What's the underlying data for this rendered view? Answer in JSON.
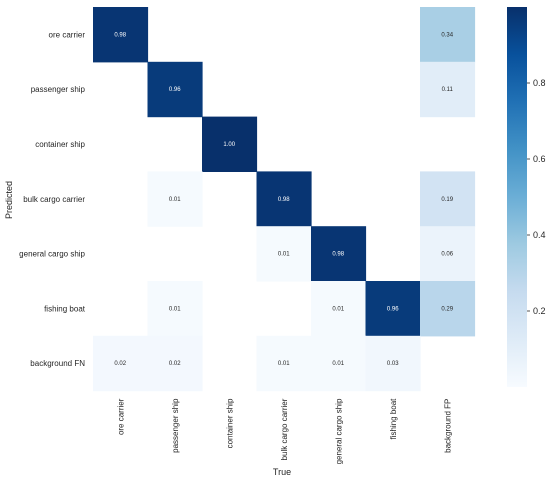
{
  "chart_data": {
    "type": "heatmap",
    "title": "",
    "xlabel": "True",
    "ylabel": "Predicted",
    "x_categories": [
      "ore carrier",
      "passenger ship",
      "container ship",
      "bulk cargo carrier",
      "general cargo ship",
      "fishing boat",
      "background FP"
    ],
    "y_categories": [
      "ore carrier",
      "passenger ship",
      "container ship",
      "bulk cargo carrier",
      "general cargo ship",
      "fishing boat",
      "background FN"
    ],
    "values": [
      [
        0.98,
        null,
        null,
        null,
        null,
        null,
        0.34
      ],
      [
        null,
        0.96,
        null,
        null,
        null,
        null,
        0.11
      ],
      [
        null,
        null,
        1.0,
        null,
        null,
        null,
        null
      ],
      [
        null,
        0.01,
        null,
        0.98,
        null,
        null,
        0.19
      ],
      [
        null,
        null,
        null,
        0.01,
        0.98,
        null,
        0.06
      ],
      [
        null,
        0.01,
        null,
        null,
        0.01,
        0.96,
        0.29
      ],
      [
        0.02,
        0.02,
        null,
        0.01,
        0.01,
        0.03,
        null
      ]
    ],
    "value_format": "2 decimals",
    "colormap": "Blues",
    "vmin": 0,
    "vmax": 1,
    "colorbar_ticks": [
      0.2,
      0.4,
      0.6,
      0.8
    ],
    "grid": false,
    "legend": "colorbar-right"
  }
}
